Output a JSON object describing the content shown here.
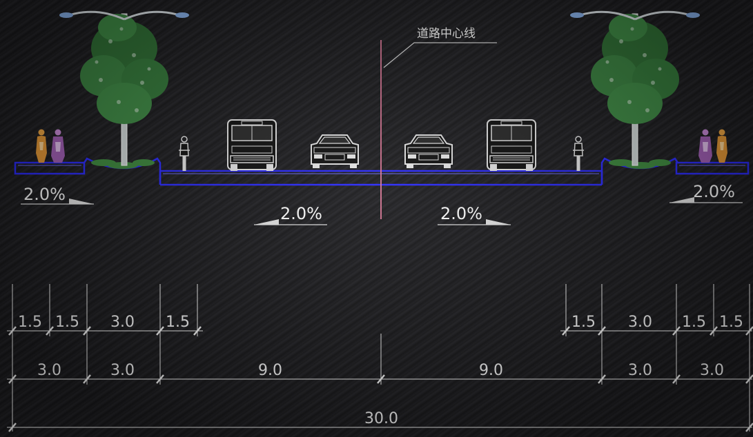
{
  "centerline_label": "道路中心线",
  "slopes": {
    "left_sidewalk": "2.0%",
    "right_sidewalk": "2.0%",
    "left_carriageway": "2.0%",
    "right_carriageway": "2.0%"
  },
  "dimensions": {
    "row1_left": [
      "1.5",
      "1.5",
      "3.0",
      "1.5"
    ],
    "row1_right": [
      "1.5",
      "3.0",
      "1.5",
      "1.5"
    ],
    "row2": [
      "3.0",
      "3.0",
      "9.0",
      "9.0",
      "3.0",
      "3.0"
    ],
    "total": "30.0"
  },
  "colors": {
    "road_line": "#2a2aff",
    "centerline": "#e07a9a",
    "dimension_line": "#d8d8d8",
    "text": "#ffffff",
    "tree": "#3e8a3e"
  }
}
